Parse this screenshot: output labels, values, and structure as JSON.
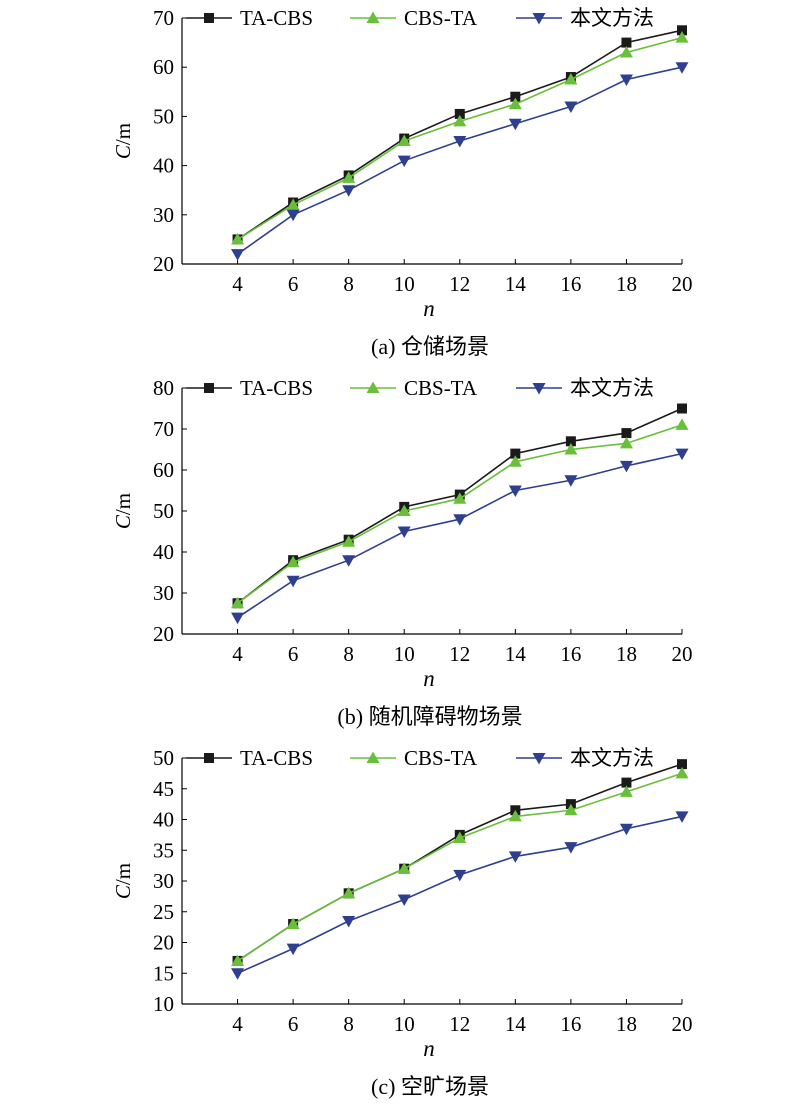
{
  "colors": {
    "ta_cbs": "#1a1a1a",
    "cbs_ta": "#6abf3a",
    "ours": "#2e3f8f",
    "axis": "#000000"
  },
  "chart_data": [
    {
      "type": "line",
      "caption": "(a) 仓储场景",
      "xlabel": "n",
      "ylabel_var": "C",
      "ylabel_unit": "/m",
      "x": [
        4,
        6,
        8,
        10,
        12,
        14,
        16,
        18,
        20
      ],
      "xlim": [
        2,
        20
      ],
      "ylim": [
        20,
        70
      ],
      "yticks": [
        20,
        30,
        40,
        50,
        60,
        70
      ],
      "grid": false,
      "legend_position": "top",
      "series": [
        {
          "name": "TA-CBS",
          "marker": "square",
          "color": "#1a1a1a",
          "values": [
            25,
            32.5,
            38,
            45.5,
            50.5,
            54,
            58,
            65,
            67.5
          ]
        },
        {
          "name": "CBS-TA",
          "marker": "triangle-up",
          "color": "#6abf3a",
          "values": [
            25,
            32,
            37.5,
            45,
            49,
            52.5,
            57.5,
            63,
            66
          ]
        },
        {
          "name": "本文方法",
          "marker": "triangle-down",
          "color": "#2e3f8f",
          "values": [
            22,
            30,
            35,
            41,
            45,
            48.5,
            52,
            57.5,
            60
          ]
        }
      ]
    },
    {
      "type": "line",
      "caption": "(b) 随机障碍物场景",
      "xlabel": "n",
      "ylabel_var": "C",
      "ylabel_unit": "/m",
      "x": [
        4,
        6,
        8,
        10,
        12,
        14,
        16,
        18,
        20
      ],
      "xlim": [
        2,
        20
      ],
      "ylim": [
        20,
        80
      ],
      "yticks": [
        20,
        30,
        40,
        50,
        60,
        70,
        80
      ],
      "grid": false,
      "legend_position": "top",
      "series": [
        {
          "name": "TA-CBS",
          "marker": "square",
          "color": "#1a1a1a",
          "values": [
            27.5,
            38,
            43,
            51,
            54,
            64,
            67,
            69,
            75
          ]
        },
        {
          "name": "CBS-TA",
          "marker": "triangle-up",
          "color": "#6abf3a",
          "values": [
            27.5,
            37.5,
            42.5,
            50,
            53,
            62,
            65,
            66.5,
            71
          ]
        },
        {
          "name": "本文方法",
          "marker": "triangle-down",
          "color": "#2e3f8f",
          "values": [
            24,
            33,
            38,
            45,
            48,
            55,
            57.5,
            61,
            64
          ]
        }
      ]
    },
    {
      "type": "line",
      "caption": "(c) 空旷场景",
      "xlabel": "n",
      "ylabel_var": "C",
      "ylabel_unit": "/m",
      "x": [
        4,
        6,
        8,
        10,
        12,
        14,
        16,
        18,
        20
      ],
      "xlim": [
        2,
        20
      ],
      "ylim": [
        10,
        50
      ],
      "yticks": [
        10,
        15,
        20,
        25,
        30,
        35,
        40,
        45,
        50
      ],
      "grid": false,
      "legend_position": "top",
      "series": [
        {
          "name": "TA-CBS",
          "marker": "square",
          "color": "#1a1a1a",
          "values": [
            17,
            23,
            28,
            32,
            37.5,
            41.5,
            42.5,
            46,
            49
          ]
        },
        {
          "name": "CBS-TA",
          "marker": "triangle-up",
          "color": "#6abf3a",
          "values": [
            17,
            23,
            28,
            32,
            37,
            40.5,
            41.5,
            44.5,
            47.5
          ]
        },
        {
          "name": "本文方法",
          "marker": "triangle-down",
          "color": "#2e3f8f",
          "values": [
            15,
            19,
            23.5,
            27,
            31,
            34,
            35.5,
            38.5,
            40.5
          ]
        }
      ]
    }
  ]
}
